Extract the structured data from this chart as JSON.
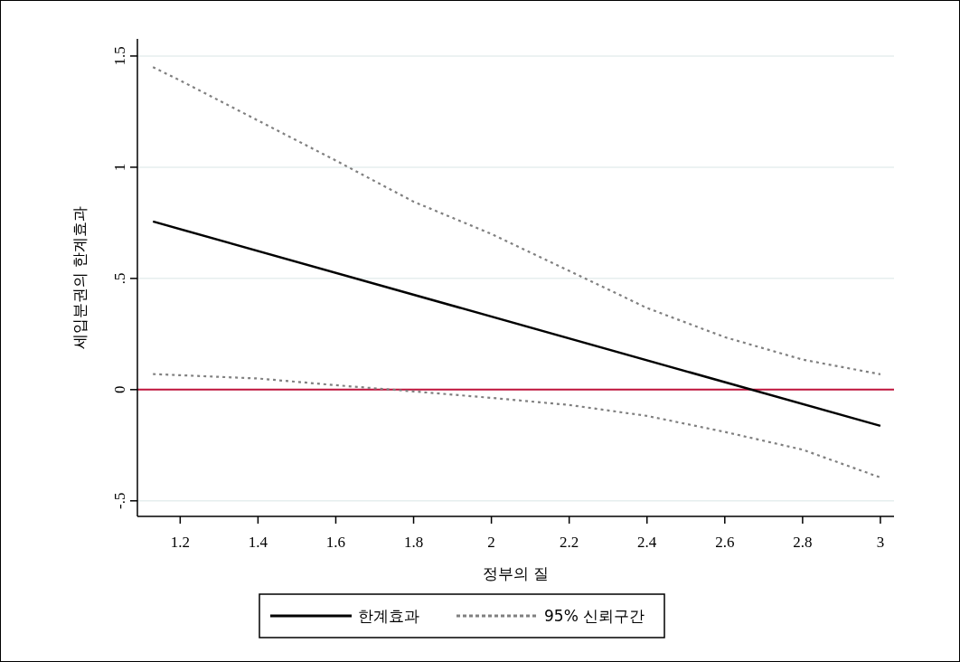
{
  "chart_data": {
    "type": "line",
    "xlabel": "정부의 질",
    "ylabel": "세입분권의 한계효과",
    "xlim": [
      1.09,
      3.035
    ],
    "ylim": [
      -0.57,
      1.577
    ],
    "xticks": [
      1.2,
      1.4,
      1.6,
      1.8,
      2,
      2.2,
      2.4,
      2.6,
      2.8,
      3
    ],
    "yticks": [
      {
        "value": -0.5,
        "label": "-.5"
      },
      0,
      {
        "value": 0.5,
        "label": ".5"
      },
      1,
      1.5
    ],
    "grid": "y",
    "legend": "bottom",
    "ref_lines": [
      {
        "axis": "y",
        "value": 0,
        "color": "#c0143c"
      }
    ],
    "series": [
      {
        "name": "한계효과",
        "color": "#000000",
        "line_style": "solid",
        "x": [
          1.13,
          3
        ],
        "values": [
          0.756,
          -0.163
        ]
      },
      {
        "name": "95% 신뢰구간",
        "color": "#808080",
        "line_style": "dotted",
        "x": [
          1.13,
          1.2,
          1.4,
          1.6,
          1.8,
          2,
          2.2,
          2.4,
          2.6,
          2.8,
          3
        ],
        "values": [
          1.45,
          1.39,
          1.21,
          1.03,
          0.845,
          0.7,
          0.534,
          0.367,
          0.236,
          0.135,
          0.069
        ]
      },
      {
        "color": "#808080",
        "line_style": "dotted",
        "x": [
          1.13,
          1.4,
          1.6,
          1.8,
          2,
          2.2,
          2.4,
          2.6,
          2.8,
          3
        ],
        "values": [
          0.07,
          0.05,
          0.02,
          -0.008,
          -0.037,
          -0.069,
          -0.118,
          -0.19,
          -0.27,
          -0.395
        ]
      }
    ]
  }
}
